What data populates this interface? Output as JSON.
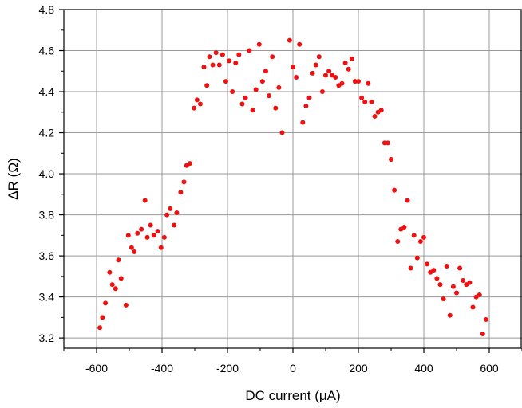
{
  "chart_data": {
    "type": "scatter",
    "xlabel": "DC current (μA)",
    "ylabel": "ΔR (Ω)",
    "xlim": [
      -700,
      700
    ],
    "ylim": [
      3.15,
      4.8
    ],
    "xticks": [
      -600,
      -400,
      -200,
      0,
      200,
      400,
      600
    ],
    "xtick_labels": [
      "-600",
      "-400",
      "-200",
      "0",
      "200",
      "400",
      "600"
    ],
    "yticks": [
      3.2,
      3.4,
      3.6,
      3.8,
      4.0,
      4.2,
      4.4,
      4.6,
      4.8
    ],
    "ytick_labels": [
      "3.2",
      "3.4",
      "3.6",
      "3.8",
      "4.0",
      "4.2",
      "4.4",
      "4.6",
      "4.8"
    ],
    "grid": true,
    "marker_color": "#ee1111",
    "series": [
      {
        "points": [
          [
            -590,
            3.25
          ],
          [
            -582,
            3.3
          ],
          [
            -573,
            3.37
          ],
          [
            -560,
            3.52
          ],
          [
            -552,
            3.46
          ],
          [
            -542,
            3.44
          ],
          [
            -533,
            3.58
          ],
          [
            -525,
            3.49
          ],
          [
            -510,
            3.36
          ],
          [
            -503,
            3.7
          ],
          [
            -493,
            3.64
          ],
          [
            -485,
            3.62
          ],
          [
            -475,
            3.71
          ],
          [
            -463,
            3.73
          ],
          [
            -452,
            3.87
          ],
          [
            -445,
            3.69
          ],
          [
            -435,
            3.75
          ],
          [
            -425,
            3.7
          ],
          [
            -413,
            3.72
          ],
          [
            -403,
            3.64
          ],
          [
            -393,
            3.69
          ],
          [
            -385,
            3.8
          ],
          [
            -375,
            3.83
          ],
          [
            -363,
            3.75
          ],
          [
            -355,
            3.81
          ],
          [
            -343,
            3.91
          ],
          [
            -333,
            3.96
          ],
          [
            -325,
            4.04
          ],
          [
            -315,
            4.05
          ],
          [
            -302,
            4.32
          ],
          [
            -293,
            4.36
          ],
          [
            -283,
            4.34
          ],
          [
            -272,
            4.52
          ],
          [
            -263,
            4.43
          ],
          [
            -255,
            4.57
          ],
          [
            -245,
            4.53
          ],
          [
            -235,
            4.59
          ],
          [
            -225,
            4.53
          ],
          [
            -215,
            4.58
          ],
          [
            -205,
            4.45
          ],
          [
            -195,
            4.55
          ],
          [
            -185,
            4.4
          ],
          [
            -175,
            4.54
          ],
          [
            -165,
            4.58
          ],
          [
            -155,
            4.34
          ],
          [
            -145,
            4.37
          ],
          [
            -133,
            4.6
          ],
          [
            -123,
            4.31
          ],
          [
            -113,
            4.41
          ],
          [
            -103,
            4.63
          ],
          [
            -93,
            4.45
          ],
          [
            -83,
            4.5
          ],
          [
            -73,
            4.38
          ],
          [
            -63,
            4.57
          ],
          [
            -53,
            4.32
          ],
          [
            -43,
            4.42
          ],
          [
            -33,
            4.2
          ],
          [
            -10,
            4.65
          ],
          [
            0,
            4.52
          ],
          [
            10,
            4.47
          ],
          [
            20,
            4.63
          ],
          [
            30,
            4.25
          ],
          [
            40,
            4.33
          ],
          [
            50,
            4.37
          ],
          [
            60,
            4.49
          ],
          [
            70,
            4.53
          ],
          [
            80,
            4.57
          ],
          [
            90,
            4.4
          ],
          [
            100,
            4.48
          ],
          [
            110,
            4.5
          ],
          [
            120,
            4.48
          ],
          [
            130,
            4.47
          ],
          [
            140,
            4.43
          ],
          [
            150,
            4.44
          ],
          [
            160,
            4.54
          ],
          [
            170,
            4.51
          ],
          [
            180,
            4.56
          ],
          [
            190,
            4.45
          ],
          [
            200,
            4.45
          ],
          [
            210,
            4.37
          ],
          [
            220,
            4.35
          ],
          [
            230,
            4.44
          ],
          [
            240,
            4.35
          ],
          [
            250,
            4.28
          ],
          [
            260,
            4.3
          ],
          [
            270,
            4.31
          ],
          [
            280,
            4.15
          ],
          [
            290,
            4.15
          ],
          [
            300,
            4.07
          ],
          [
            310,
            3.92
          ],
          [
            320,
            3.67
          ],
          [
            330,
            3.73
          ],
          [
            340,
            3.74
          ],
          [
            350,
            3.87
          ],
          [
            360,
            3.54
          ],
          [
            370,
            3.7
          ],
          [
            380,
            3.59
          ],
          [
            390,
            3.67
          ],
          [
            400,
            3.69
          ],
          [
            410,
            3.56
          ],
          [
            420,
            3.52
          ],
          [
            430,
            3.53
          ],
          [
            440,
            3.49
          ],
          [
            450,
            3.46
          ],
          [
            460,
            3.39
          ],
          [
            470,
            3.55
          ],
          [
            480,
            3.31
          ],
          [
            490,
            3.45
          ],
          [
            500,
            3.42
          ],
          [
            510,
            3.54
          ],
          [
            520,
            3.48
          ],
          [
            530,
            3.46
          ],
          [
            540,
            3.47
          ],
          [
            550,
            3.35
          ],
          [
            560,
            3.4
          ],
          [
            570,
            3.41
          ],
          [
            580,
            3.22
          ],
          [
            590,
            3.29
          ]
        ]
      }
    ]
  }
}
